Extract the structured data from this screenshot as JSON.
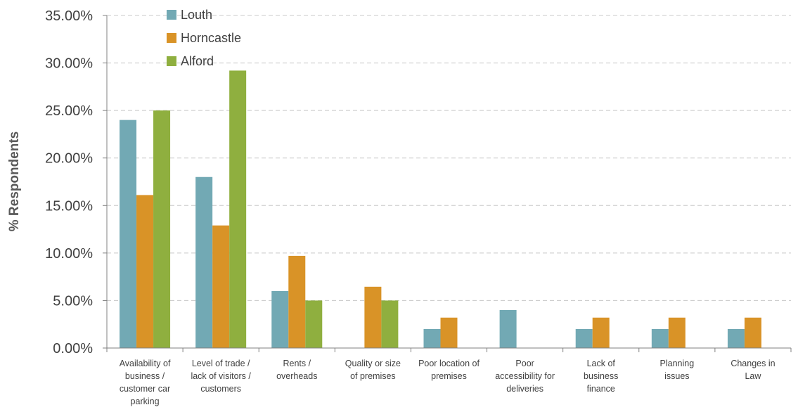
{
  "chart_data": {
    "type": "bar",
    "title": "",
    "xlabel": "",
    "ylabel": "% Respondents",
    "ylim": [
      0,
      35
    ],
    "ytick_step": 5,
    "ytick_labels": [
      "0.00%",
      "5.00%",
      "10.00%",
      "15.00%",
      "20.00%",
      "25.00%",
      "30.00%",
      "35.00%"
    ],
    "grid": "horizontal-dashed",
    "legend_position": "top-left",
    "categories": [
      [
        "Availability of",
        "business /",
        "customer car",
        "parking"
      ],
      [
        "Level of trade /",
        "lack of visitors /",
        "customers"
      ],
      [
        "Rents /",
        "overheads"
      ],
      [
        "Quality or size",
        "of premises"
      ],
      [
        "Poor location of",
        "premises"
      ],
      [
        "Poor",
        "accessibility for",
        "deliveries"
      ],
      [
        "Lack of",
        "business",
        "finance"
      ],
      [
        "Planning",
        "issues"
      ],
      [
        "Changes in",
        "Law"
      ]
    ],
    "series": [
      {
        "name": "Louth",
        "color": "#72A9B4",
        "values": [
          24.0,
          18.0,
          6.0,
          0,
          2.0,
          4.0,
          2.0,
          2.0,
          2.0
        ]
      },
      {
        "name": "Horncastle",
        "color": "#D99327",
        "values": [
          16.1,
          12.9,
          9.7,
          6.45,
          3.2,
          0,
          3.2,
          3.2,
          3.2
        ]
      },
      {
        "name": "Alford",
        "color": "#8FAF3F",
        "values": [
          25.0,
          29.2,
          5.0,
          5.0,
          0,
          0,
          0,
          0,
          0
        ]
      }
    ]
  }
}
